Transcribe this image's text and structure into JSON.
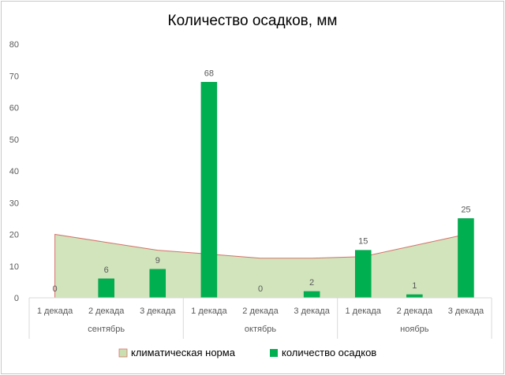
{
  "chart_data": {
    "type": "bar",
    "title": "Количество осадков, мм",
    "xlabel": "",
    "ylabel": "",
    "ylim": [
      0,
      80
    ],
    "yticks": [
      0,
      10,
      20,
      30,
      40,
      50,
      60,
      70,
      80
    ],
    "grid": false,
    "legend_position": "bottom",
    "categories": [
      "1 декада",
      "2 декада",
      "3 декада",
      "1 декада",
      "2 декада",
      "3 декада",
      "1 декада",
      "2 декада",
      "3 декада"
    ],
    "groups": [
      {
        "label": "сентябрь",
        "span": 3
      },
      {
        "label": "октябрь",
        "span": 3
      },
      {
        "label": "ноябрь",
        "span": 3
      }
    ],
    "series": [
      {
        "name": "климатическая норма",
        "kind": "area",
        "color": "#c9dfb0",
        "edge": "#d4736a",
        "values": [
          20,
          17.5,
          15,
          13.8,
          12.5,
          12.5,
          13,
          16.5,
          20
        ]
      },
      {
        "name": "количество осадков",
        "kind": "bar",
        "color": "#00b050",
        "values": [
          0,
          6,
          9,
          68,
          0,
          2,
          15,
          1,
          25
        ],
        "data_labels": [
          "0",
          "6",
          "9",
          "68",
          "0",
          "2",
          "15",
          "1",
          "25"
        ]
      }
    ]
  }
}
